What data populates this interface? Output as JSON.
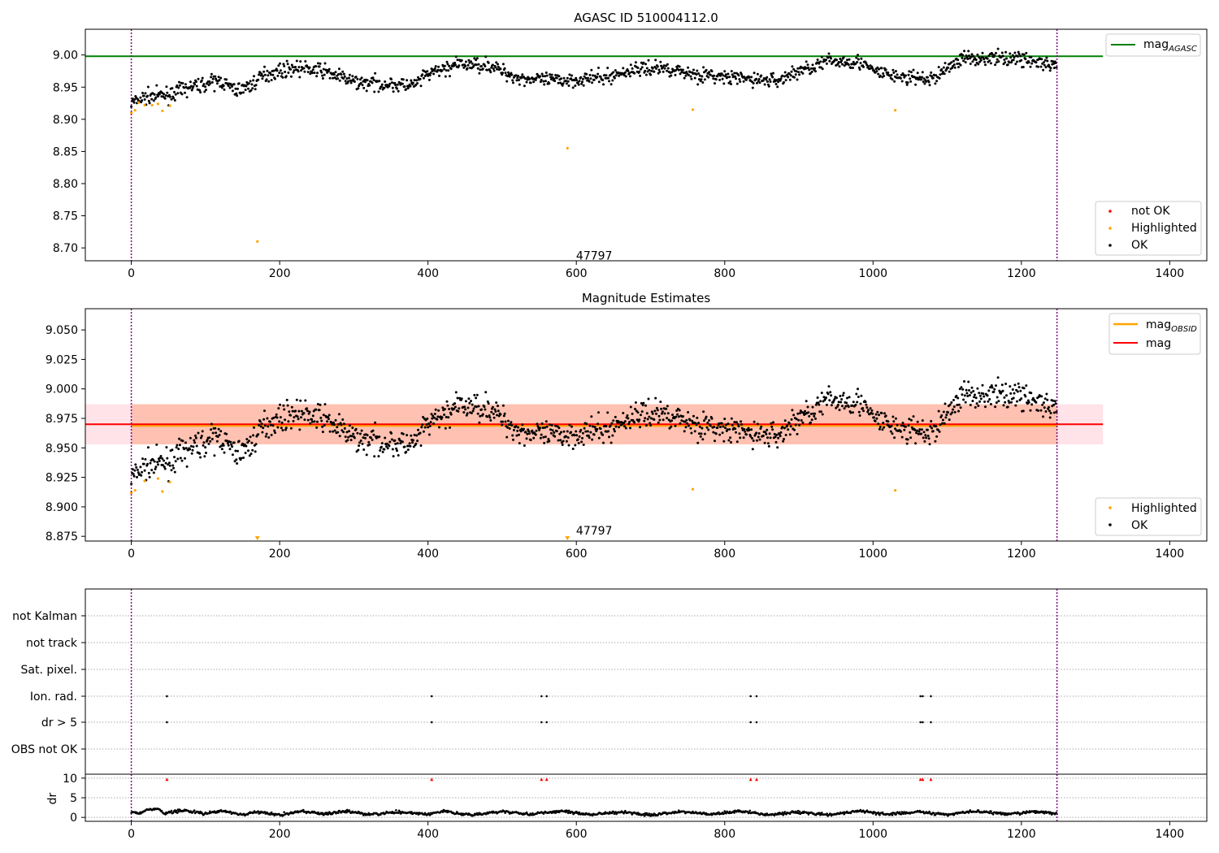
{
  "chart_data": [
    {
      "type": "scatter",
      "title": "AGASC ID 510004112.0",
      "xlim": [
        -62,
        1450
      ],
      "ylim": [
        8.68,
        9.04
      ],
      "x_ticks": [
        0,
        200,
        400,
        600,
        800,
        1000,
        1200,
        1400
      ],
      "y_ticks": [
        8.7,
        8.75,
        8.8,
        8.85,
        8.9,
        8.95,
        9.0
      ],
      "vlines": [
        0,
        1248
      ],
      "reference_lines": [
        {
          "name": "mag_AGASC",
          "value": 8.998,
          "color": "#008000"
        }
      ],
      "legend_top": {
        "placement": "upper-right",
        "entries": [
          {
            "label": "mag",
            "sub": "AGASC",
            "color": "#008000"
          }
        ]
      },
      "legend_bottom": {
        "placement": "lower-right",
        "entries": [
          {
            "label": "not OK",
            "color": "#ff0000"
          },
          {
            "label": "Highlighted",
            "color": "#ffa500"
          },
          {
            "label": "OK",
            "color": "#000000"
          }
        ]
      },
      "annotation": {
        "text": "47797",
        "x": 600,
        "y": 8.688
      },
      "highlighted_points": [
        [
          0,
          8.91
        ],
        [
          5,
          8.914
        ],
        [
          10,
          8.926
        ],
        [
          18,
          8.922
        ],
        [
          28,
          8.922
        ],
        [
          36,
          8.924
        ],
        [
          42,
          8.913
        ],
        [
          52,
          8.921
        ],
        [
          170,
          8.71
        ],
        [
          588,
          8.855
        ],
        [
          757,
          8.915
        ],
        [
          1030,
          8.914
        ]
      ],
      "ok_trend": [
        [
          0,
          8.925
        ],
        [
          20,
          8.935
        ],
        [
          50,
          8.938
        ],
        [
          80,
          8.95
        ],
        [
          120,
          8.96
        ],
        [
          140,
          8.945
        ],
        [
          160,
          8.952
        ],
        [
          180,
          8.97
        ],
        [
          220,
          8.98
        ],
        [
          260,
          8.975
        ],
        [
          300,
          8.958
        ],
        [
          340,
          8.955
        ],
        [
          380,
          8.952
        ],
        [
          400,
          8.97
        ],
        [
          440,
          8.985
        ],
        [
          480,
          8.985
        ],
        [
          520,
          8.965
        ],
        [
          560,
          8.96
        ],
        [
          600,
          8.962
        ],
        [
          640,
          8.965
        ],
        [
          680,
          8.978
        ],
        [
          720,
          8.98
        ],
        [
          760,
          8.97
        ],
        [
          800,
          8.965
        ],
        [
          840,
          8.962
        ],
        [
          870,
          8.96
        ],
        [
          900,
          8.975
        ],
        [
          940,
          8.99
        ],
        [
          980,
          8.99
        ],
        [
          1000,
          8.975
        ],
        [
          1040,
          8.965
        ],
        [
          1080,
          8.962
        ],
        [
          1100,
          8.98
        ],
        [
          1120,
          8.995
        ],
        [
          1160,
          8.995
        ],
        [
          1200,
          8.995
        ],
        [
          1248,
          8.98
        ]
      ],
      "ok_noise": 0.008
    },
    {
      "type": "scatter",
      "title": "Magnitude Estimates",
      "xlim": [
        -62,
        1450
      ],
      "ylim": [
        8.871,
        9.068
      ],
      "x_ticks": [
        0,
        200,
        400,
        600,
        800,
        1000,
        1200,
        1400
      ],
      "y_ticks": [
        8.875,
        8.9,
        8.925,
        8.95,
        8.975,
        9.0,
        9.025,
        9.05
      ],
      "vlines": [
        0,
        1248
      ],
      "reference_lines": [
        {
          "name": "mag_OBSID",
          "value": 8.969,
          "color": "#ffa500"
        },
        {
          "name": "mag",
          "value": 8.97,
          "color": "#ff0000"
        }
      ],
      "band_inner": {
        "x": [
          0,
          1248
        ],
        "y": [
          8.953,
          8.987
        ],
        "color": "#ffa07a"
      },
      "band_outer": {
        "x": [
          -62,
          1310
        ],
        "y": [
          8.953,
          8.987
        ],
        "color": "#ffc0cb"
      },
      "legend_top": {
        "placement": "upper-right",
        "entries": [
          {
            "label": "mag",
            "sub": "OBSID",
            "color": "#ffa500"
          },
          {
            "label": "mag",
            "sub": "",
            "color": "#ff0000"
          }
        ]
      },
      "legend_bottom": {
        "placement": "lower-right",
        "entries": [
          {
            "label": "Highlighted",
            "color": "#ffa500"
          },
          {
            "label": "OK",
            "color": "#000000"
          }
        ]
      },
      "annotation": {
        "text": "47797",
        "x": 600,
        "y": 8.88
      },
      "highlighted_points": [
        [
          0,
          8.912
        ],
        [
          5,
          8.914
        ],
        [
          18,
          8.922
        ],
        [
          36,
          8.924
        ],
        [
          42,
          8.913
        ],
        [
          52,
          8.921
        ],
        [
          757,
          8.915
        ],
        [
          1030,
          8.914
        ]
      ],
      "off_scale_markers": [
        [
          170,
          8.873
        ],
        [
          588,
          8.873
        ]
      ],
      "ok_trend": [
        [
          0,
          8.925
        ],
        [
          20,
          8.935
        ],
        [
          50,
          8.938
        ],
        [
          80,
          8.95
        ],
        [
          120,
          8.96
        ],
        [
          140,
          8.945
        ],
        [
          160,
          8.952
        ],
        [
          180,
          8.97
        ],
        [
          220,
          8.98
        ],
        [
          260,
          8.975
        ],
        [
          300,
          8.958
        ],
        [
          340,
          8.955
        ],
        [
          380,
          8.952
        ],
        [
          400,
          8.97
        ],
        [
          440,
          8.985
        ],
        [
          480,
          8.985
        ],
        [
          520,
          8.965
        ],
        [
          560,
          8.96
        ],
        [
          600,
          8.962
        ],
        [
          640,
          8.965
        ],
        [
          680,
          8.978
        ],
        [
          720,
          8.98
        ],
        [
          760,
          8.97
        ],
        [
          800,
          8.965
        ],
        [
          840,
          8.962
        ],
        [
          870,
          8.96
        ],
        [
          900,
          8.975
        ],
        [
          940,
          8.99
        ],
        [
          980,
          8.99
        ],
        [
          1000,
          8.975
        ],
        [
          1040,
          8.965
        ],
        [
          1080,
          8.962
        ],
        [
          1100,
          8.98
        ],
        [
          1120,
          8.995
        ],
        [
          1160,
          8.995
        ],
        [
          1200,
          8.995
        ],
        [
          1248,
          8.98
        ]
      ],
      "ok_noise": 0.008
    },
    {
      "type": "scatter",
      "title": "",
      "xlim": [
        -62,
        1450
      ],
      "x_ticks": [
        0,
        200,
        400,
        600,
        800,
        1000,
        1200,
        1400
      ],
      "vlines": [
        0,
        1248
      ],
      "flag_rows": [
        "not Kalman",
        "not track",
        "Sat. pixel.",
        "Ion. rad.",
        "dr > 5",
        "OBS not OK"
      ],
      "flag_points": {
        "Ion. rad.": [
          48,
          405,
          553,
          560,
          835,
          843,
          1064,
          1067,
          1078
        ],
        "dr > 5": [
          48,
          405,
          553,
          560,
          835,
          843,
          1064,
          1067,
          1078
        ]
      },
      "dr_panel": {
        "ylabel": "dr",
        "ylim": [
          -1,
          11
        ],
        "y_ticks": [
          0,
          5,
          10
        ],
        "clipped_markers_x": [
          48,
          405,
          553,
          560,
          835,
          843,
          1064,
          1067,
          1078
        ],
        "clipped_value": 9.7,
        "dr_trend": [
          [
            0,
            1.5
          ],
          [
            10,
            1.0
          ],
          [
            20,
            1.8
          ],
          [
            35,
            2.3
          ],
          [
            45,
            1.0
          ],
          [
            70,
            1.8
          ],
          [
            100,
            1.0
          ],
          [
            125,
            1.7
          ],
          [
            150,
            0.6
          ],
          [
            170,
            1.4
          ],
          [
            200,
            0.6
          ],
          [
            230,
            1.6
          ],
          [
            260,
            0.8
          ],
          [
            290,
            1.6
          ],
          [
            320,
            0.7
          ],
          [
            360,
            1.4
          ],
          [
            400,
            0.8
          ],
          [
            420,
            1.6
          ],
          [
            460,
            0.6
          ],
          [
            500,
            1.5
          ],
          [
            540,
            0.7
          ],
          [
            580,
            1.6
          ],
          [
            620,
            0.7
          ],
          [
            660,
            1.4
          ],
          [
            700,
            0.6
          ],
          [
            740,
            1.5
          ],
          [
            780,
            0.8
          ],
          [
            820,
            1.6
          ],
          [
            860,
            0.7
          ],
          [
            900,
            1.3
          ],
          [
            940,
            0.6
          ],
          [
            980,
            1.6
          ],
          [
            1020,
            0.8
          ],
          [
            1060,
            1.4
          ],
          [
            1100,
            0.7
          ],
          [
            1140,
            1.6
          ],
          [
            1180,
            0.8
          ],
          [
            1220,
            1.5
          ],
          [
            1248,
            0.9
          ]
        ],
        "dr_noise": 0.25
      }
    }
  ]
}
